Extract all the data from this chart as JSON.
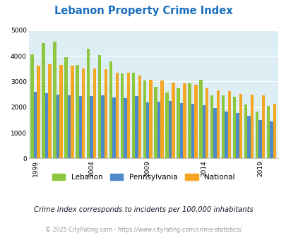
{
  "title": "Lebanon Property Crime Index",
  "subtitle": "Crime Index corresponds to incidents per 100,000 inhabitants",
  "footer": "© 2025 CityRating.com - https://www.cityrating.com/crime-statistics/",
  "years": [
    1999,
    2000,
    2001,
    2002,
    2003,
    2004,
    2005,
    2006,
    2007,
    2008,
    2009,
    2010,
    2011,
    2012,
    2013,
    2014,
    2015,
    2016,
    2017,
    2018,
    2019,
    2020
  ],
  "lebanon": [
    4060,
    4500,
    4550,
    3950,
    3650,
    4280,
    4020,
    3780,
    3320,
    3340,
    3040,
    2800,
    2560,
    2730,
    2920,
    3070,
    2470,
    2450,
    2420,
    2100,
    1840,
    2060
  ],
  "pennsylvania": [
    2600,
    2550,
    2480,
    2470,
    2430,
    2430,
    2460,
    2370,
    2350,
    2440,
    2190,
    2210,
    2230,
    2170,
    2140,
    2080,
    1980,
    1840,
    1770,
    1660,
    1500,
    1450
  ],
  "national": [
    3610,
    3680,
    3660,
    3610,
    3520,
    3510,
    3480,
    3350,
    3340,
    3230,
    3070,
    3040,
    2970,
    2940,
    2870,
    2750,
    2650,
    2640,
    2510,
    2490,
    2470,
    2120
  ],
  "lebanon_color": "#8dc63f",
  "pennsylvania_color": "#4d8ac9",
  "national_color": "#f5a623",
  "bg_color": "#ffffff",
  "plot_bg_color": "#ddeef5",
  "title_color": "#1a6fbe",
  "subtitle_color": "#1a1a2e",
  "footer_color": "#999999",
  "ylim": [
    0,
    5000
  ],
  "yticks": [
    0,
    1000,
    2000,
    3000,
    4000,
    5000
  ],
  "tick_years": [
    1999,
    2004,
    2009,
    2014,
    2019
  ]
}
